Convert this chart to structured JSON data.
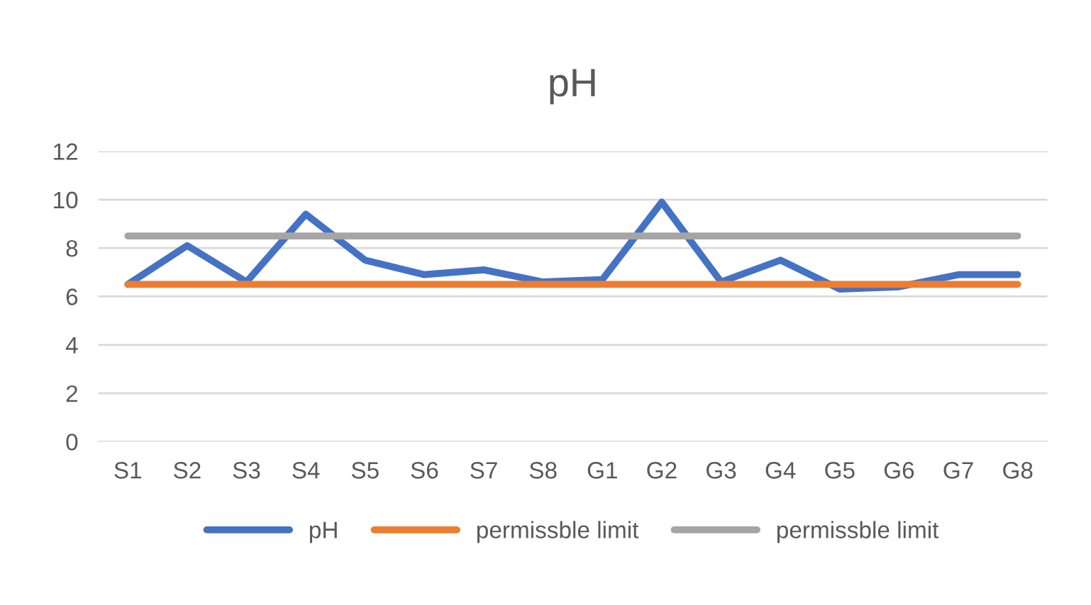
{
  "chart_data": {
    "type": "line",
    "title": "pH",
    "categories": [
      "S1",
      "S2",
      "S3",
      "S4",
      "S5",
      "S6",
      "S7",
      "S8",
      "G1",
      "G2",
      "G3",
      "G4",
      "G5",
      "G6",
      "G7",
      "G8"
    ],
    "series": [
      {
        "name": "pH",
        "color": "#4472c4",
        "values": [
          6.5,
          8.1,
          6.6,
          9.4,
          7.5,
          6.9,
          7.1,
          6.6,
          6.7,
          9.9,
          6.6,
          7.5,
          6.3,
          6.4,
          6.9,
          6.9
        ]
      },
      {
        "name": "permissble limit",
        "color": "#ed7d31",
        "values": [
          6.5,
          6.5,
          6.5,
          6.5,
          6.5,
          6.5,
          6.5,
          6.5,
          6.5,
          6.5,
          6.5,
          6.5,
          6.5,
          6.5,
          6.5,
          6.5
        ]
      },
      {
        "name": "permissble limit",
        "color": "#a5a5a5",
        "values": [
          8.5,
          8.5,
          8.5,
          8.5,
          8.5,
          8.5,
          8.5,
          8.5,
          8.5,
          8.5,
          8.5,
          8.5,
          8.5,
          8.5,
          8.5,
          8.5
        ]
      }
    ],
    "ylim": [
      0,
      12
    ],
    "yticks": [
      0,
      2,
      4,
      6,
      8,
      10,
      12
    ],
    "grid": "y",
    "legend": "bottom",
    "marker": "none",
    "line_style": "solid"
  }
}
